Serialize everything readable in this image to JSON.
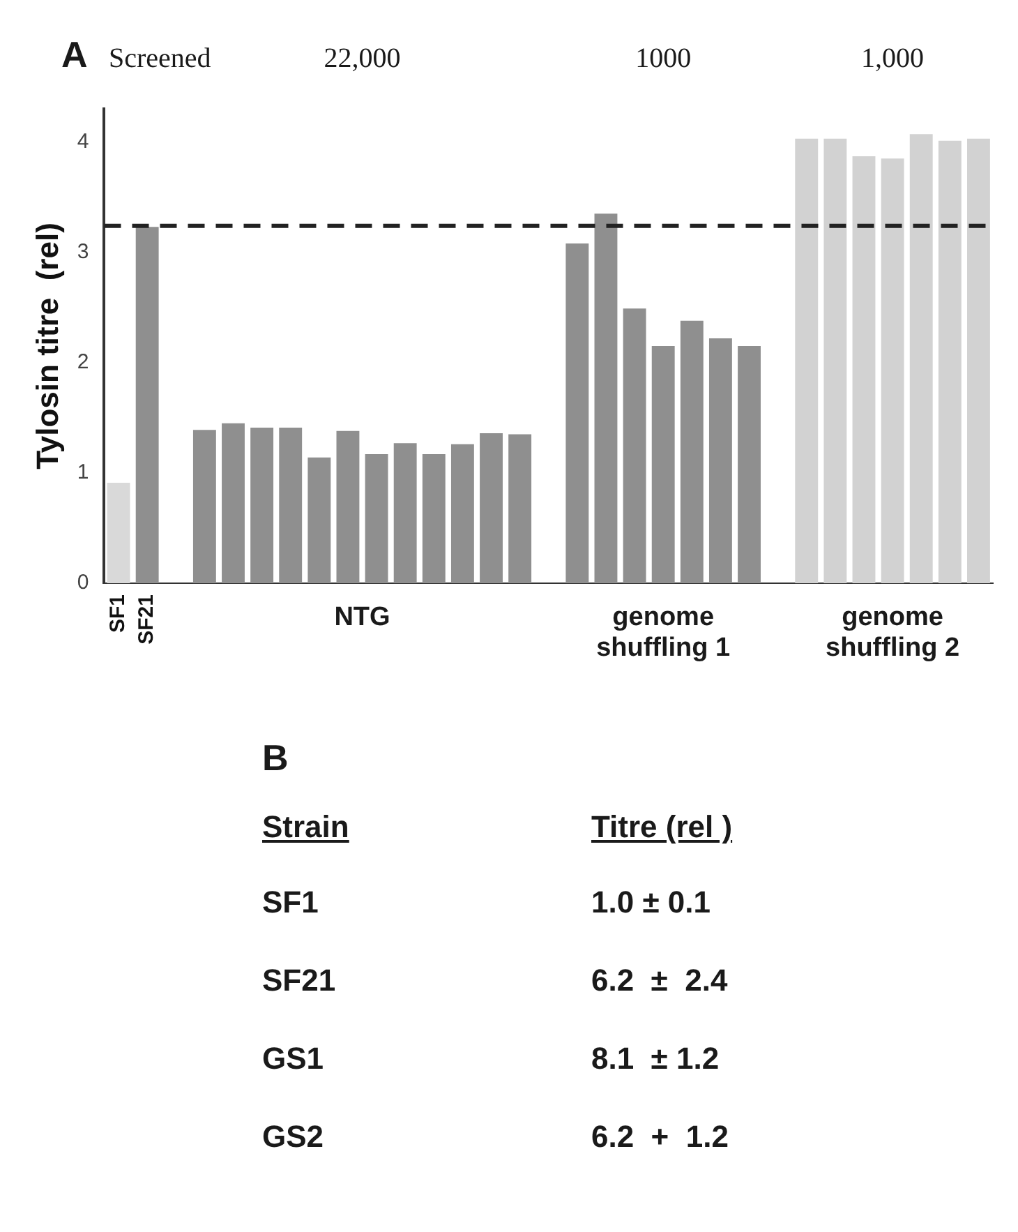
{
  "chart_data": [
    {
      "type": "bar",
      "ylabel": "Tylosin titre  (rel)",
      "categories": [
        "SF1",
        "SF21",
        null,
        null,
        null,
        null,
        null,
        null,
        null,
        null,
        null,
        null,
        null,
        null,
        null,
        null,
        null,
        null,
        null,
        null,
        null,
        null,
        null,
        null,
        null,
        null,
        null,
        null,
        null,
        null,
        null
      ],
      "values": [
        0.91,
        3.23,
        null,
        1.39,
        1.45,
        1.41,
        1.41,
        1.14,
        1.38,
        1.17,
        1.27,
        1.17,
        1.26,
        1.36,
        1.35,
        null,
        3.08,
        3.35,
        2.49,
        2.15,
        2.38,
        2.22,
        2.15,
        null,
        4.03,
        4.03,
        3.87,
        3.85,
        4.07,
        4.01,
        4.03
      ],
      "colors": [
        "#d9d9d9",
        "#8f8f8f",
        "#8f8f8f",
        "#8f8f8f",
        "#8f8f8f",
        "#8f8f8f",
        "#8f8f8f",
        "#8f8f8f",
        "#8f8f8f",
        "#8f8f8f",
        "#8f8f8f",
        "#8f8f8f",
        "#8f8f8f",
        "#8f8f8f",
        "#8f8f8f",
        "#8f8f8f",
        "#8f8f8f",
        "#8f8f8f",
        "#8f8f8f",
        "#8f8f8f",
        "#8f8f8f",
        "#8f8f8f",
        "#8f8f8f",
        "#d2d2d2",
        "#d2d2d2",
        "#d2d2d2",
        "#d2d2d2",
        "#d2d2d2",
        "#d2d2d2",
        "#d2d2d2",
        "#d2d2d2"
      ],
      "ylim": [
        0,
        4.3
      ],
      "yticks": [
        0,
        1,
        2,
        3,
        4
      ],
      "grid": false,
      "legend": false,
      "ref_lines": [
        {
          "axis": "y",
          "value": 3.24,
          "color": "#222222",
          "line_style": "dashed"
        }
      ],
      "annotations": [
        "A",
        "Screened",
        "22,000",
        "1000",
        "1,000",
        "NTG",
        "genome shuffling 1",
        "genome shuffling 2"
      ]
    },
    {
      "type": "other",
      "title": "B",
      "annotations": [
        "Strain",
        "Titre (rel )",
        "SF1",
        "1.0 ± 0.1",
        "SF21",
        "6.2  ±  2.4",
        "GS1",
        "8.1  ± 1.2",
        "GS2",
        "6.2  +  1.2"
      ]
    }
  ]
}
